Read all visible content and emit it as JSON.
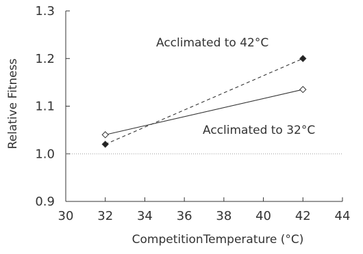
{
  "chart_data": {
    "type": "line",
    "title": "",
    "xlabel": "CompetitionTemperature (°C)",
    "ylabel": "Relative Fitness",
    "xlim": [
      30,
      44
    ],
    "ylim": [
      0.9,
      1.3
    ],
    "xticks": [
      30,
      32,
      34,
      36,
      38,
      40,
      42,
      44
    ],
    "yticks": [
      0.9,
      1.0,
      1.1,
      1.2,
      1.3
    ],
    "xtick_labels": [
      "30",
      "32",
      "34",
      "36",
      "38",
      "40",
      "42",
      "44"
    ],
    "ytick_labels": [
      "0.9",
      "1.0",
      "1.1",
      "1.2",
      "1.3"
    ],
    "grid": false,
    "reference_line": {
      "y": 1.0,
      "style": "dotted"
    },
    "series": [
      {
        "label": "Acclimated to 42°C",
        "marker": "filled-diamond",
        "line_style": "dashed",
        "x": [
          32,
          42
        ],
        "y": [
          1.02,
          1.2
        ]
      },
      {
        "label": "Acclimated to 32°C",
        "marker": "open-diamond",
        "line_style": "solid",
        "x": [
          32,
          42
        ],
        "y": [
          1.04,
          1.135
        ]
      }
    ]
  }
}
